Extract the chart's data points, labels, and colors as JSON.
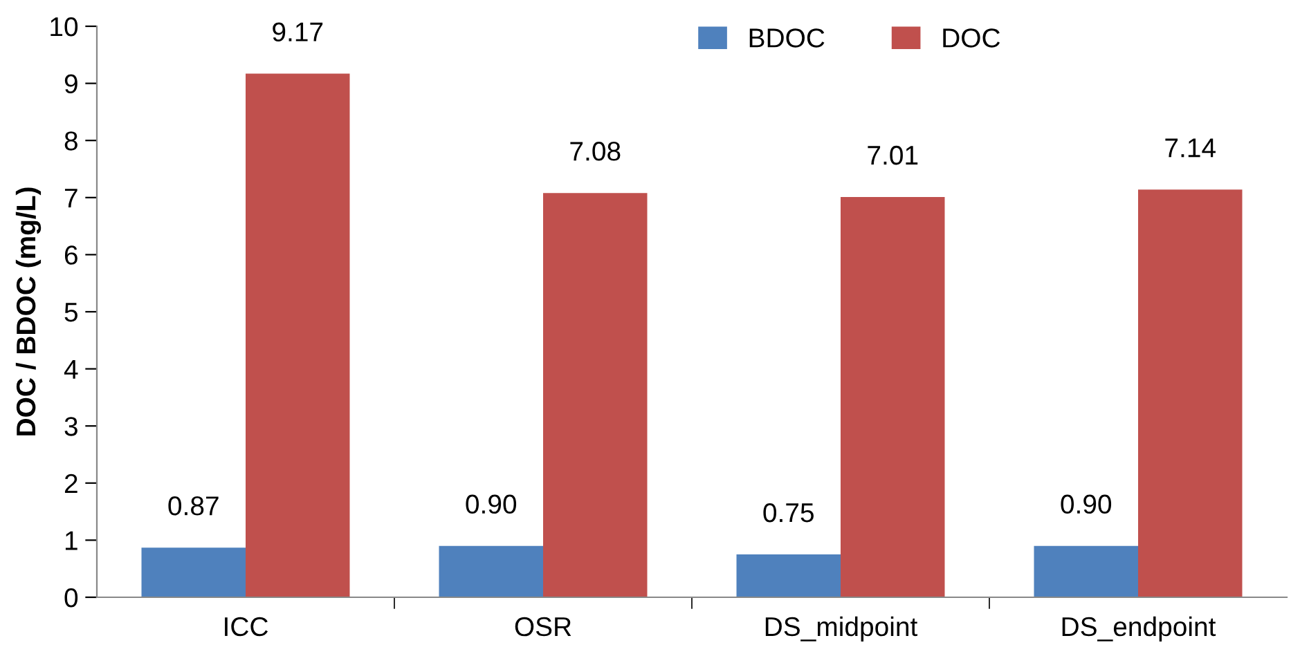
{
  "chart_data": {
    "type": "bar",
    "ylabel": "DOC / BDOC (mg/L)",
    "categories": [
      "ICC",
      "OSR",
      "DS_midpoint",
      "DS_endpoint"
    ],
    "series": [
      {
        "name": "BDOC",
        "color": "#4f81bd",
        "values": [
          0.87,
          0.9,
          0.75,
          0.9
        ],
        "value_labels": [
          "0.87",
          "0.90",
          "0.75",
          "0.90"
        ]
      },
      {
        "name": "DOC",
        "color": "#c0504d",
        "values": [
          9.17,
          7.08,
          7.01,
          7.14
        ],
        "value_labels": [
          "9.17",
          "7.08",
          "7.01",
          "7.14"
        ]
      }
    ],
    "ylim": [
      0,
      10
    ],
    "yticks": [
      0,
      1,
      2,
      3,
      4,
      5,
      6,
      7,
      8,
      9,
      10
    ],
    "grid": false,
    "legend": "top right"
  }
}
